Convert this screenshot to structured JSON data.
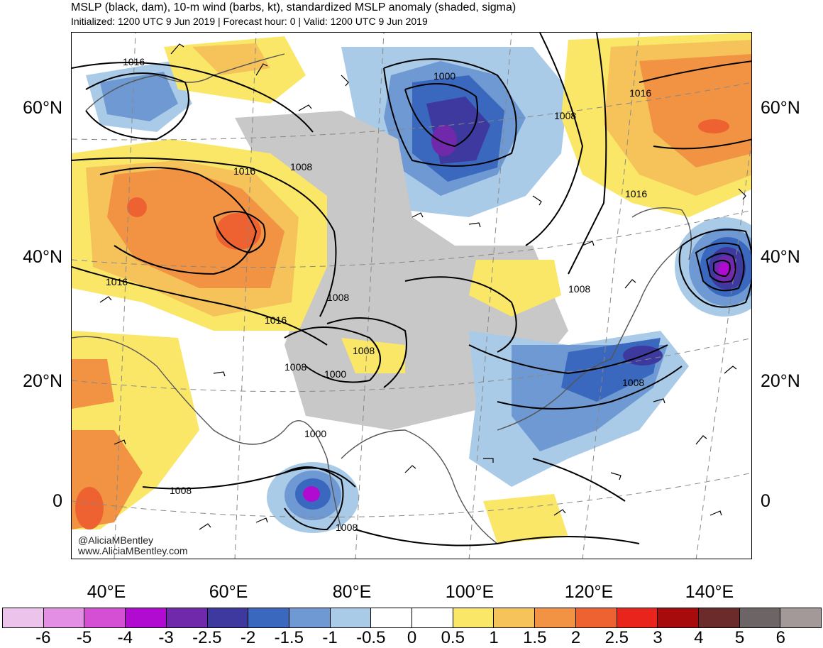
{
  "header": {
    "title": "MSLP (black, dam), 10-m wind (barbs, kt), standardized MSLP anomaly (shaded, sigma)",
    "subtitle": "Initialized: 1200 UTC 9 Jun 2019 | Forecast hour: 0 | Valid: 1200 UTC 9 Jun 2019"
  },
  "map": {
    "lat_labels": [
      "60°N",
      "40°N",
      "20°N",
      "0"
    ],
    "lon_labels": [
      "40°E",
      "60°E",
      "80°E",
      "100°E",
      "120°E",
      "140°E"
    ],
    "contour_labels": [
      "1016",
      "1016",
      "1016",
      "1016",
      "1016",
      "1016",
      "1008",
      "1008",
      "1008",
      "1008",
      "1008",
      "1008",
      "1008",
      "1008",
      "1008",
      "1000",
      "1000",
      "1000"
    ],
    "credit_handle": "@AliciaMBentley",
    "credit_site": "www.AliciaMBentley.com"
  },
  "colorbar": {
    "colors": [
      "#ebc3eb",
      "#e38fe3",
      "#d54fd5",
      "#b10bd1",
      "#7129ab",
      "#3e399f",
      "#3b68bf",
      "#6f99d3",
      "#a9cbe8",
      "#ffffff",
      "#ffffff",
      "#fae767",
      "#f6c35a",
      "#f19343",
      "#ee6232",
      "#e8241c",
      "#a80b0b",
      "#6c2b2b",
      "#6d6565",
      "#a49999"
    ],
    "labels": [
      "-6",
      "-5",
      "-4",
      "-3",
      "-2.5",
      "-2",
      "-1.5",
      "-1",
      "-0.5",
      "0",
      "0.5",
      "1",
      "1.5",
      "2",
      "2.5",
      "3",
      "4",
      "5",
      "6"
    ]
  }
}
